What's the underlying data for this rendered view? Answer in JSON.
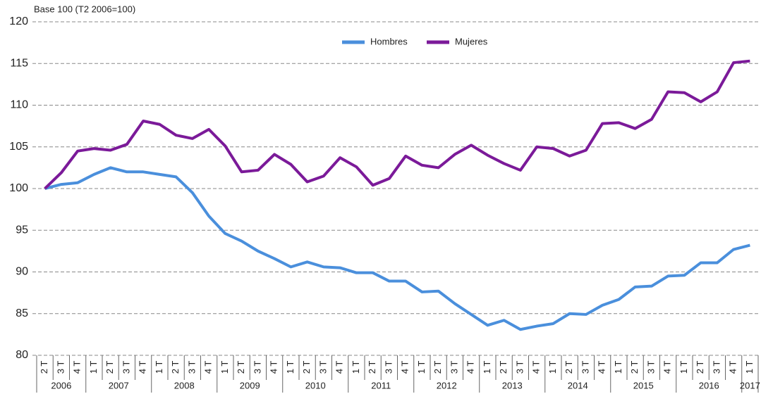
{
  "chart_data": {
    "type": "line",
    "y_label": "Base 100 (T2 2006=100)",
    "categories": [
      "2 T",
      "3 T",
      "4 T",
      "1 T",
      "2 T",
      "3 T",
      "4 T",
      "1 T",
      "2 T",
      "3 T",
      "4 T",
      "1 T",
      "2 T",
      "3 T",
      "4 T",
      "1 T",
      "2 T",
      "3 T",
      "4 T",
      "1 T",
      "2 T",
      "3 T",
      "4 T",
      "1 T",
      "2 T",
      "3 T",
      "4 T",
      "1 T",
      "2 T",
      "3 T",
      "4 T",
      "1 T",
      "2 T",
      "3 T",
      "4 T",
      "1 T",
      "2 T",
      "3 T",
      "4 T",
      "1 T",
      "2 T",
      "3 T",
      "4 T",
      "1 T"
    ],
    "year_labels": [
      "2006",
      "2007",
      "2008",
      "2009",
      "2010",
      "2011",
      "2012",
      "2013",
      "2014",
      "2015",
      "2016",
      "2017"
    ],
    "series": [
      {
        "name": "Hombres",
        "color": "#4a8fdc",
        "values": [
          100,
          100.5,
          100.7,
          101.7,
          102.5,
          102,
          102,
          101.7,
          101.4,
          99.5,
          96.7,
          94.6,
          93.7,
          92.5,
          91.6,
          90.6,
          91.2,
          90.6,
          90.5,
          89.9,
          89.9,
          88.9,
          88.9,
          87.6,
          87.7,
          86.2,
          84.9,
          83.6,
          84.2,
          83.1,
          83.5,
          83.8,
          85,
          84.9,
          86,
          86.7,
          88.2,
          88.3,
          89.5,
          89.6,
          91.1,
          91.1,
          92.7,
          93.2
        ]
      },
      {
        "name": "Mujeres",
        "color": "#7b1a99",
        "values": [
          100,
          101.9,
          104.5,
          104.8,
          104.6,
          105.3,
          108.1,
          107.7,
          106.4,
          106,
          107.1,
          105.1,
          102,
          102.2,
          104.1,
          102.9,
          100.8,
          101.5,
          103.7,
          102.6,
          100.4,
          101.2,
          103.9,
          102.8,
          102.5,
          104.1,
          105.2,
          104,
          103,
          102.2,
          105,
          104.8,
          103.9,
          104.6,
          107.8,
          107.9,
          107.2,
          108.3,
          111.6,
          111.5,
          110.4,
          111.6,
          115.1,
          115.3
        ]
      }
    ],
    "ylim": [
      80,
      120
    ],
    "yticks": [
      80,
      85,
      90,
      95,
      100,
      105,
      110,
      115,
      120
    ],
    "grid": true,
    "legend": "top"
  }
}
